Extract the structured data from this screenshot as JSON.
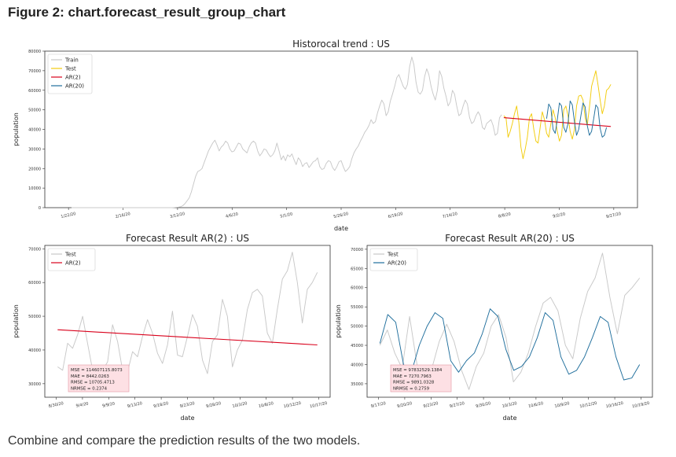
{
  "figure": {
    "title": "Figure 2: chart.forecast_result_group_chart",
    "caption": "Combine and compare the prediction results of the two models."
  },
  "colors": {
    "train": "#c8c8c8",
    "test_top": "#f2cc0c",
    "test_bottom": "#c8c8c8",
    "ar2": "#d9001b",
    "ar20": "#1f6e9c",
    "metrics_bg": "#fde0e4",
    "metrics_border": "#e7a0ad"
  },
  "chart_data": [
    {
      "type": "line",
      "title": "Historocal trend : US",
      "xlabel": "date",
      "ylabel": "population",
      "ylim": [
        0,
        80000
      ],
      "yticks": [
        "0",
        "10000",
        "20000",
        "30000",
        "40000",
        "50000",
        "60000",
        "70000",
        "80000"
      ],
      "x_tick_labels": [
        "1/22/20",
        "2/16/20",
        "3/12/20",
        "4/6/20",
        "5/1/20",
        "5/26/20",
        "6/19/20",
        "7/14/20",
        "8/8/20",
        "9/2/20",
        "9/27/20"
      ],
      "legend": [
        "Train",
        "Test",
        "AR(2)",
        "AR(20)"
      ],
      "legend_position": "top-left",
      "series": [
        {
          "name": "Train",
          "x_start": 0,
          "values": [
            0,
            0,
            0,
            0,
            0,
            0,
            0,
            0,
            0,
            0,
            0,
            0,
            0,
            0,
            0,
            0,
            0,
            0,
            0,
            0,
            0,
            0,
            0,
            0,
            0,
            0,
            0,
            0,
            0,
            0,
            0,
            0,
            0,
            0,
            0,
            0,
            0,
            0,
            0,
            0,
            0,
            0,
            0,
            0,
            0,
            0,
            0,
            0,
            100,
            200,
            300,
            500,
            1000,
            2000,
            3500,
            5000,
            8000,
            12000,
            16000,
            18500,
            19000,
            20000,
            23000,
            26000,
            29000,
            31000,
            33000,
            34500,
            32000,
            29000,
            31000,
            32000,
            34000,
            33000,
            30000,
            28500,
            29000,
            31000,
            33000,
            32500,
            30000,
            29000,
            28000,
            31000,
            33000,
            34000,
            33000,
            29000,
            26500,
            28000,
            30000,
            29500,
            27500,
            26000,
            27000,
            29000,
            33000,
            29000,
            24500,
            26500,
            24000,
            27000,
            26000,
            27500,
            24500,
            22000,
            25500,
            24000,
            21000,
            22500,
            23000,
            20500,
            22000,
            23500,
            24000,
            25500,
            21000,
            19500,
            20000,
            22500,
            24000,
            23500,
            20500,
            19000,
            21000,
            23500,
            24000,
            21000,
            18500,
            19500,
            21000,
            25000,
            28000,
            30000,
            31500,
            34000,
            36000,
            38500,
            40000,
            42000,
            45000,
            43000,
            44000,
            48500,
            52000,
            55000,
            53000,
            47000,
            49000,
            54500,
            58000,
            62000,
            66500,
            68000,
            65000,
            62000,
            60500,
            63000,
            72000,
            77000,
            73000,
            64000,
            59000,
            58000,
            60000,
            67000,
            71000,
            68000,
            62000,
            58000,
            55000,
            60000,
            70000,
            67000,
            61000,
            57000,
            52000,
            54000,
            60000,
            58000,
            52000,
            47000,
            48000,
            52000,
            55000,
            53000,
            46000,
            43000,
            44000,
            47000,
            49000,
            47000,
            41000,
            40000,
            43000,
            44000,
            45000,
            42000,
            37000,
            38000,
            46000,
            47500
          ]
        },
        {
          "name": "Test",
          "x_start": 202,
          "values": [
            47000,
            46000,
            36000,
            39000,
            43000,
            48000,
            52000,
            44000,
            31000,
            25000,
            30000,
            36000,
            46000,
            48000,
            40000,
            34000,
            33000,
            41000,
            49000,
            45000,
            38000,
            36000,
            43000,
            50000,
            46000,
            39000,
            34000,
            37000,
            50000,
            52000,
            47000,
            39000,
            35000,
            40000,
            52000,
            57000,
            57500,
            55000,
            46000,
            42000,
            51000,
            62000,
            66000,
            70000,
            63000,
            55000,
            48000,
            52000,
            60000,
            61000,
            63000
          ]
        },
        {
          "name": "AR(2)",
          "x_start": 202,
          "values": [
            46000,
            41500
          ]
        },
        {
          "name": "AR(20)",
          "x_start": 222,
          "values": [
            45500,
            53000,
            51000,
            40000,
            38000,
            45000,
            53500,
            52000,
            41000,
            38500,
            43000,
            54500,
            52500,
            44000,
            37000,
            40000,
            47000,
            53500,
            51500,
            42000,
            37000,
            39000,
            45500,
            52500,
            51000,
            40500,
            36000,
            37000,
            41000
          ]
        }
      ]
    },
    {
      "type": "line",
      "title": "Forecast Result  AR(2) : US",
      "xlabel": "date",
      "ylabel": "population",
      "ylim": [
        26000,
        71000
      ],
      "yticks": [
        "30000",
        "40000",
        "50000",
        "60000",
        "70000"
      ],
      "x_tick_labels": [
        "8/30/20",
        "9/4/20",
        "9/9/20",
        "9/13/20",
        "9/18/20",
        "9/23/20",
        "9/28/20",
        "10/3/20",
        "10/8/20",
        "10/12/20",
        "10/17/20"
      ],
      "legend": [
        "Test",
        "AR(2)"
      ],
      "legend_position": "top-left",
      "series": [
        {
          "name": "Test",
          "values": [
            35000,
            34000,
            42000,
            40500,
            44500,
            50000,
            42000,
            34000,
            31000,
            34000,
            36500,
            47500,
            42500,
            34000,
            33500,
            39500,
            38000,
            44000,
            49000,
            45000,
            39000,
            36000,
            41500,
            51500,
            38500,
            38000,
            44000,
            50500,
            47000,
            37000,
            33000,
            42500,
            44500,
            55000,
            50000,
            35000,
            40000,
            43000,
            52000,
            57000,
            58000,
            56000,
            45000,
            42000,
            52000,
            61000,
            63500,
            69000,
            60000,
            48000,
            58000,
            60000,
            63000
          ]
        },
        {
          "name": "AR(2)",
          "values": [
            46000,
            41500
          ]
        }
      ],
      "metrics": [
        "MSE = 114607115.8073",
        "MAE = 8442.0263",
        "RMSE = 10705.4713",
        "NRMSE = 0.2374"
      ],
      "metrics_position": "bottom-left"
    },
    {
      "type": "line",
      "title": "Forecast Result  AR(20) : US",
      "xlabel": "date",
      "ylabel": "population",
      "ylim": [
        31500,
        71000
      ],
      "yticks": [
        "35000",
        "40000",
        "45000",
        "50000",
        "55000",
        "60000",
        "65000",
        "70000"
      ],
      "x_tick_labels": [
        "9/17/20",
        "9/20/20",
        "9/23/20",
        "9/27/20",
        "9/30/20",
        "10/3/20",
        "10/6/20",
        "10/9/20",
        "10/12/20",
        "10/16/20",
        "10/19/20"
      ],
      "legend": [
        "Test",
        "AR(20)"
      ],
      "legend_position": "top-left",
      "series": [
        {
          "name": "Test",
          "values": [
            45000,
            49000,
            43000,
            39000,
            52500,
            40000,
            36000,
            39000,
            46000,
            50500,
            46000,
            38500,
            33500,
            39500,
            43000,
            50000,
            53000,
            47000,
            35500,
            38000,
            43000,
            50000,
            56000,
            57500,
            54000,
            45000,
            41500,
            52000,
            59000,
            62500,
            69000,
            57500,
            48000,
            58000,
            60000,
            62500
          ]
        },
        {
          "name": "AR(20)",
          "values": [
            45500,
            53000,
            51000,
            40000,
            38000,
            45000,
            50000,
            53500,
            52000,
            41000,
            38000,
            41000,
            43000,
            48000,
            54500,
            52500,
            44000,
            38500,
            39500,
            42000,
            47000,
            53500,
            51500,
            42000,
            37500,
            38500,
            42000,
            47000,
            52500,
            51000,
            42000,
            36000,
            36500,
            40000
          ]
        }
      ],
      "metrics": [
        "MSE = 97832529.1384",
        "MAE = 7270.7963",
        "RMSE = 9891.0328",
        "NRMSE = 0.2759"
      ],
      "metrics_position": "bottom-left"
    }
  ]
}
